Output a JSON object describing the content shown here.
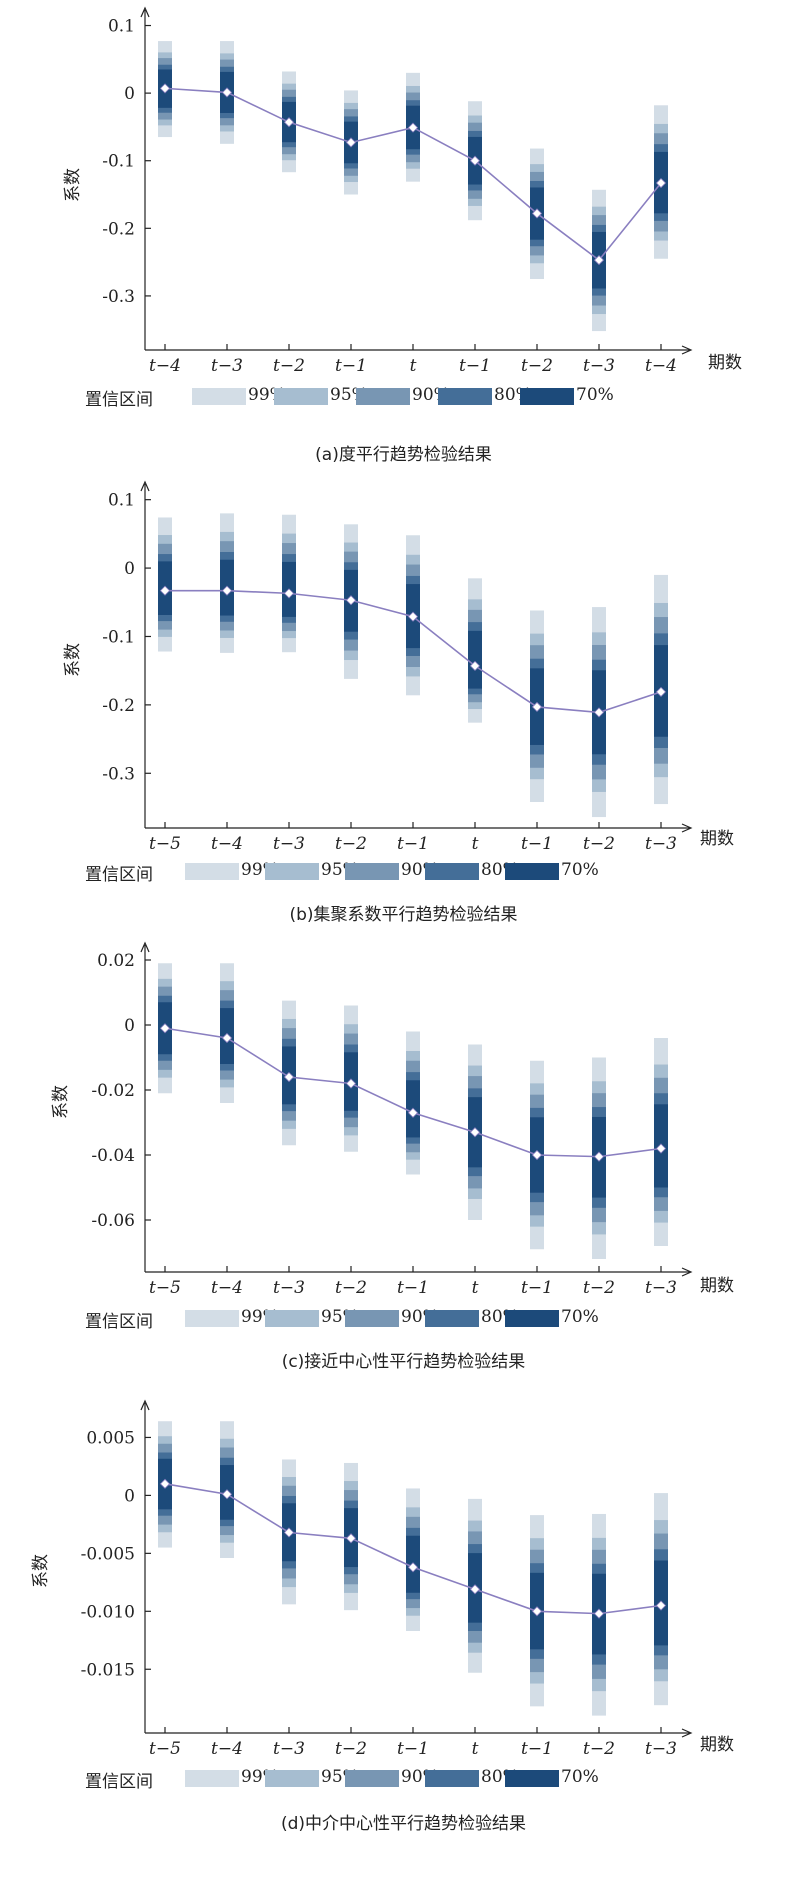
{
  "legend": {
    "title": "置信区间",
    "items": [
      {
        "label": "99%",
        "color": "#d3dde6"
      },
      {
        "label": "95%",
        "color": "#a6bdd0"
      },
      {
        "label": "90%",
        "color": "#7896b3"
      },
      {
        "label": "80%",
        "color": "#446e98"
      },
      {
        "label": "70%",
        "color": "#1c4a7a"
      }
    ]
  },
  "colors": {
    "line": "#8a7fc0",
    "marker": "#ffffff",
    "axis": "#222222"
  },
  "chart_data": [
    {
      "type": "line",
      "caption": "(a)度平行趋势检验结果",
      "xlabel": "期数",
      "ylabel": "系数",
      "categories": [
        "t−4",
        "t−3",
        "t−2",
        "t−1",
        "t",
        "t−1",
        "t−2",
        "t−3",
        "t−4"
      ],
      "values": [
        0.007,
        0.001,
        -0.043,
        -0.073,
        -0.051,
        -0.1,
        -0.178,
        -0.247,
        -0.133
      ],
      "ci_99": [
        [
          -0.065,
          0.077
        ],
        [
          -0.075,
          0.077
        ],
        [
          -0.117,
          0.032
        ],
        [
          -0.15,
          0.004
        ],
        [
          -0.131,
          0.03
        ],
        [
          -0.188,
          -0.012
        ],
        [
          -0.275,
          -0.082
        ],
        [
          -0.352,
          -0.143
        ],
        [
          -0.245,
          -0.018
        ]
      ],
      "yticks": [
        0.1,
        0,
        -0.1,
        -0.2,
        -0.3
      ],
      "ytick_labels": [
        "0.1",
        "0",
        "-0.1",
        "-0.2",
        "-0.3"
      ],
      "ylim": [
        -0.38,
        0.12
      ],
      "grid": false,
      "legend_position": "bottom"
    },
    {
      "type": "line",
      "caption": "(b)集聚系数平行趋势检验结果",
      "xlabel": "期数",
      "ylabel": "系数",
      "categories": [
        "t−5",
        "t−4",
        "t−3",
        "t−2",
        "t−1",
        "t",
        "t−1",
        "t−2",
        "t−3"
      ],
      "values": [
        -0.033,
        -0.033,
        -0.037,
        -0.047,
        -0.071,
        -0.143,
        -0.203,
        -0.211,
        -0.181
      ],
      "ci_99": [
        [
          -0.122,
          0.074
        ],
        [
          -0.124,
          0.08
        ],
        [
          -0.123,
          0.078
        ],
        [
          -0.162,
          0.064
        ],
        [
          -0.186,
          0.048
        ],
        [
          -0.226,
          -0.015
        ],
        [
          -0.342,
          -0.062
        ],
        [
          -0.364,
          -0.057
        ],
        [
          -0.345,
          -0.01
        ]
      ],
      "yticks": [
        0.1,
        0,
        -0.1,
        -0.2,
        -0.3
      ],
      "ytick_labels": [
        "0.1",
        "0",
        "-0.1",
        "-0.2",
        "-0.3"
      ],
      "ylim": [
        -0.38,
        0.12
      ],
      "grid": false,
      "legend_position": "bottom"
    },
    {
      "type": "line",
      "caption": "(c)接近中心性平行趋势检验结果",
      "xlabel": "期数",
      "ylabel": "系数",
      "categories": [
        "t−5",
        "t−4",
        "t−3",
        "t−2",
        "t−1",
        "t",
        "t−1",
        "t−2",
        "t−3"
      ],
      "values": [
        -0.001,
        -0.004,
        -0.016,
        -0.018,
        -0.027,
        -0.033,
        -0.04,
        -0.0405,
        -0.038
      ],
      "ci_99": [
        [
          -0.021,
          0.019
        ],
        [
          -0.024,
          0.019
        ],
        [
          -0.037,
          0.0075
        ],
        [
          -0.039,
          0.006
        ],
        [
          -0.046,
          -0.002
        ],
        [
          -0.06,
          -0.006
        ],
        [
          -0.069,
          -0.011
        ],
        [
          -0.072,
          -0.01
        ],
        [
          -0.068,
          -0.004
        ]
      ],
      "yticks": [
        0.02,
        0,
        -0.02,
        -0.04,
        -0.06
      ],
      "ytick_labels": [
        "0.02",
        "0",
        "-0.02",
        "-0.04",
        "-0.06"
      ],
      "ylim": [
        -0.076,
        0.024
      ],
      "grid": false,
      "legend_position": "bottom"
    },
    {
      "type": "line",
      "caption": "(d)中介中心性平行趋势检验结果",
      "xlabel": "期数",
      "ylabel": "系数",
      "categories": [
        "t−5",
        "t−4",
        "t−3",
        "t−2",
        "t−1",
        "t",
        "t−1",
        "t−2",
        "t−3"
      ],
      "values": [
        0.001,
        0.0001,
        -0.0032,
        -0.0037,
        -0.0062,
        -0.0081,
        -0.01,
        -0.0102,
        -0.0095
      ],
      "ci_99": [
        [
          -0.0045,
          0.0064
        ],
        [
          -0.0054,
          0.0064
        ],
        [
          -0.0094,
          0.0031
        ],
        [
          -0.0099,
          0.0028
        ],
        [
          -0.0117,
          0.0006
        ],
        [
          -0.0153,
          -0.0003
        ],
        [
          -0.0182,
          -0.0017
        ],
        [
          -0.019,
          -0.0016
        ],
        [
          -0.0181,
          0.0002
        ]
      ],
      "yticks": [
        0.005,
        0,
        -0.005,
        -0.01,
        -0.015
      ],
      "ytick_labels": [
        "0.005",
        "0",
        "-0.005",
        "-0.010",
        "-0.015"
      ],
      "ylim": [
        -0.0205,
        0.0078
      ],
      "grid": false,
      "legend_position": "bottom"
    }
  ]
}
